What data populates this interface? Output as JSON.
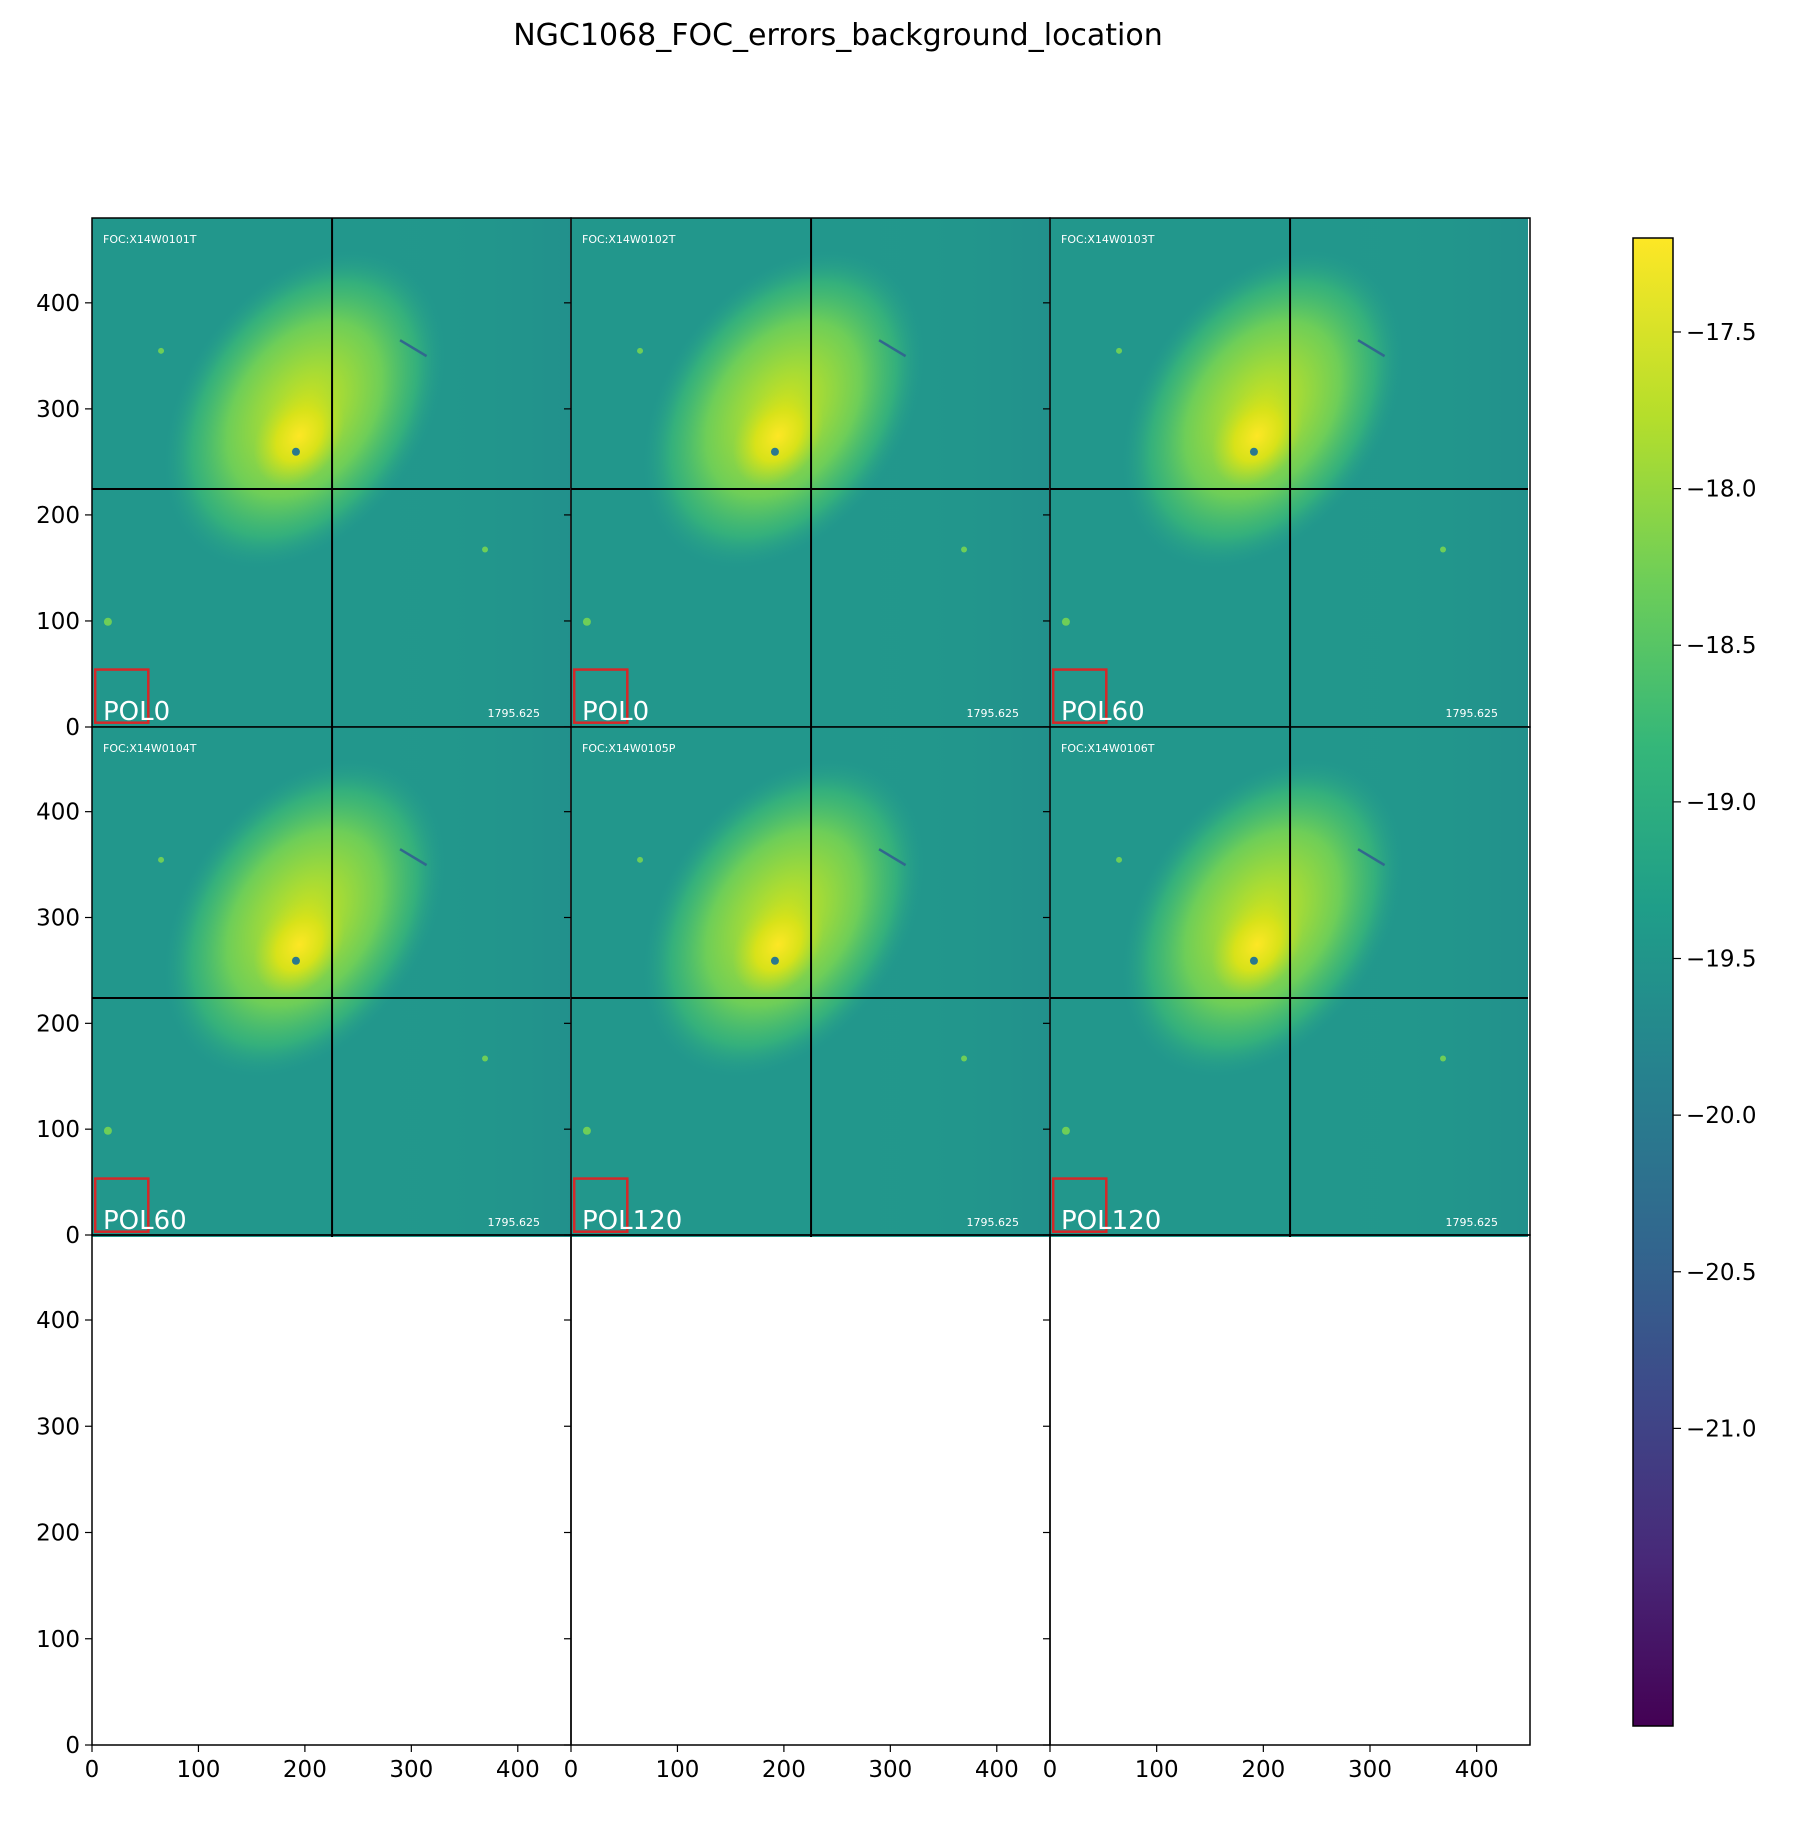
{
  "figure_title": "NGC1068_FOC_errors_background_location",
  "chart_data": {
    "type": "heatmap",
    "title": "NGC1068_FOC_errors_background_location",
    "layout": {
      "rows": 3,
      "cols": 3
    },
    "colormap": "viridis",
    "xlim": [
      0,
      450
    ],
    "ylim": [
      0,
      480
    ],
    "x_ticks": [
      0,
      100,
      200,
      300,
      400
    ],
    "y_ticks": [
      0,
      100,
      200,
      300,
      400
    ],
    "colorbar": {
      "min": -21.95,
      "max": -17.2,
      "ticks": [
        -17.5,
        -18.0,
        -18.5,
        -19.0,
        -19.5,
        -20.0,
        -20.5,
        -21.0
      ],
      "tick_labels": [
        "−17.5",
        "−18.0",
        "−18.5",
        "−19.0",
        "−19.5",
        "−20.0",
        "−20.5",
        "−21.0"
      ]
    },
    "background_box": {
      "x": 3,
      "y": 5,
      "width": 50,
      "height": 50,
      "color": "#d62728"
    },
    "panels": [
      {
        "header": "FOC:X14W0101T",
        "filter": "POL0",
        "exptime": "1795.625",
        "row": 0,
        "col": 0
      },
      {
        "header": "FOC:X14W0102T",
        "filter": "POL0",
        "exptime": "1795.625",
        "row": 0,
        "col": 1
      },
      {
        "header": "FOC:X14W0103T",
        "filter": "POL60",
        "exptime": "1795.625",
        "row": 0,
        "col": 2
      },
      {
        "header": "FOC:X14W0104T",
        "filter": "POL60",
        "exptime": "1795.625",
        "row": 1,
        "col": 0
      },
      {
        "header": "FOC:X14W0105P",
        "filter": "POL120",
        "exptime": "1795.625",
        "row": 1,
        "col": 1
      },
      {
        "header": "FOC:X14W0106T",
        "filter": "POL120",
        "exptime": "1795.625",
        "row": 1,
        "col": 2
      }
    ],
    "empty_panels": [
      {
        "row": 2,
        "col": 0
      },
      {
        "row": 2,
        "col": 1
      },
      {
        "row": 2,
        "col": 2
      }
    ]
  }
}
